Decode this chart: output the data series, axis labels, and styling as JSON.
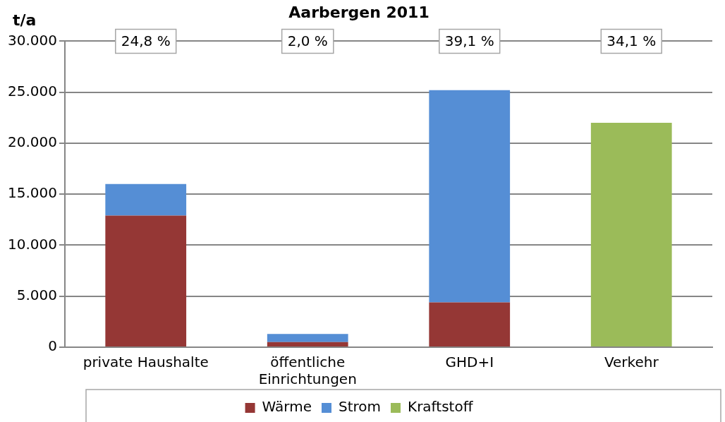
{
  "chart_data": {
    "type": "bar",
    "title": "Aarbergen 2011",
    "ylabel": "t/a",
    "stacked": true,
    "categories": [
      "private Haushalte",
      "öffentliche Einrichtungen",
      "GHD+I",
      "Verkehr"
    ],
    "series": [
      {
        "name": "Wärme",
        "color": "#953735",
        "values": [
          12900,
          500,
          4400,
          null
        ]
      },
      {
        "name": "Strom",
        "color": "#558ed5",
        "values": [
          3100,
          800,
          20800,
          null
        ]
      },
      {
        "name": "Kraftstoff",
        "color": "#9bbb59",
        "values": [
          null,
          null,
          null,
          22000
        ]
      }
    ],
    "ylim": [
      0,
      30000
    ],
    "yticks": [
      {
        "value": 0,
        "label": "0"
      },
      {
        "value": 5000,
        "label": "5.000"
      },
      {
        "value": 10000,
        "label": "10.000"
      },
      {
        "value": 15000,
        "label": "15.000"
      },
      {
        "value": 20000,
        "label": "20.000"
      },
      {
        "value": 25000,
        "label": "25.000"
      },
      {
        "value": 30000,
        "label": "30.000"
      }
    ],
    "grid": "y",
    "legend": "bottom",
    "annotations": [
      "24,8 %",
      "2,0 %",
      "39,1 %",
      "34,1 %"
    ]
  }
}
